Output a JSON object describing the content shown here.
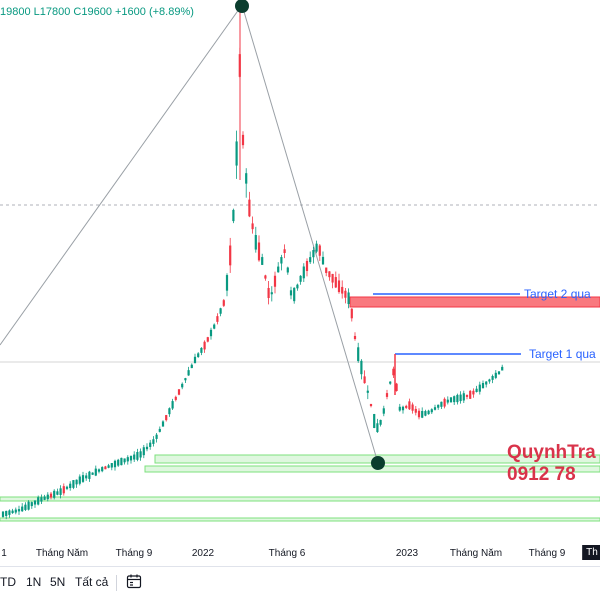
{
  "header": {
    "ohlc_text": "19800  L17800  C19600  +1600 (+8.89%)"
  },
  "chart_data": {
    "type": "candlestick",
    "x_ticks": [
      "1",
      "Tháng Năm",
      "Tháng 9",
      "2022",
      "Tháng 6",
      "2023",
      "Tháng Năm",
      "Tháng 9",
      "Th"
    ],
    "annotations": {
      "target_1": "Target 1 qua",
      "target_2": "Target 2 qua",
      "watermark_line1": "QuynhTra",
      "watermark_line2": "0912 78"
    },
    "last_close": 19600,
    "change": 1600,
    "change_pct": 8.89,
    "colors": {
      "up": "#089981",
      "down": "#f23645",
      "target": "#2962ff",
      "support": "#7ee07e",
      "resistance": "#f23645"
    }
  },
  "toolbar": {
    "items": [
      "TD",
      "1N",
      "5N",
      "Tất cả"
    ]
  }
}
